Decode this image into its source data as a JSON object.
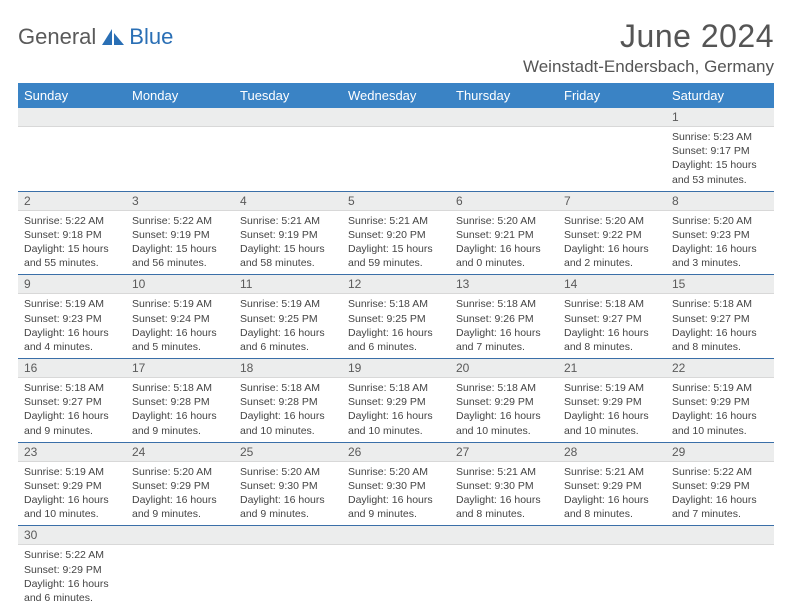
{
  "brand": {
    "part1": "General",
    "part2": "Blue"
  },
  "title": "June 2024",
  "location": "Weinstadt-Endersbach, Germany",
  "colors": {
    "header_bg": "#3a83c5",
    "header_text": "#ffffff",
    "row_divider": "#3a6fa8",
    "daynum_bg": "#eceded",
    "brand_gray": "#5a5a5a",
    "brand_blue": "#2a6fb5"
  },
  "weekdays": [
    "Sunday",
    "Monday",
    "Tuesday",
    "Wednesday",
    "Thursday",
    "Friday",
    "Saturday"
  ],
  "weeks": [
    [
      null,
      null,
      null,
      null,
      null,
      null,
      {
        "n": "1",
        "sr": "Sunrise: 5:23 AM",
        "ss": "Sunset: 9:17 PM",
        "dl": "Daylight: 15 hours and 53 minutes."
      }
    ],
    [
      {
        "n": "2",
        "sr": "Sunrise: 5:22 AM",
        "ss": "Sunset: 9:18 PM",
        "dl": "Daylight: 15 hours and 55 minutes."
      },
      {
        "n": "3",
        "sr": "Sunrise: 5:22 AM",
        "ss": "Sunset: 9:19 PM",
        "dl": "Daylight: 15 hours and 56 minutes."
      },
      {
        "n": "4",
        "sr": "Sunrise: 5:21 AM",
        "ss": "Sunset: 9:19 PM",
        "dl": "Daylight: 15 hours and 58 minutes."
      },
      {
        "n": "5",
        "sr": "Sunrise: 5:21 AM",
        "ss": "Sunset: 9:20 PM",
        "dl": "Daylight: 15 hours and 59 minutes."
      },
      {
        "n": "6",
        "sr": "Sunrise: 5:20 AM",
        "ss": "Sunset: 9:21 PM",
        "dl": "Daylight: 16 hours and 0 minutes."
      },
      {
        "n": "7",
        "sr": "Sunrise: 5:20 AM",
        "ss": "Sunset: 9:22 PM",
        "dl": "Daylight: 16 hours and 2 minutes."
      },
      {
        "n": "8",
        "sr": "Sunrise: 5:20 AM",
        "ss": "Sunset: 9:23 PM",
        "dl": "Daylight: 16 hours and 3 minutes."
      }
    ],
    [
      {
        "n": "9",
        "sr": "Sunrise: 5:19 AM",
        "ss": "Sunset: 9:23 PM",
        "dl": "Daylight: 16 hours and 4 minutes."
      },
      {
        "n": "10",
        "sr": "Sunrise: 5:19 AM",
        "ss": "Sunset: 9:24 PM",
        "dl": "Daylight: 16 hours and 5 minutes."
      },
      {
        "n": "11",
        "sr": "Sunrise: 5:19 AM",
        "ss": "Sunset: 9:25 PM",
        "dl": "Daylight: 16 hours and 6 minutes."
      },
      {
        "n": "12",
        "sr": "Sunrise: 5:18 AM",
        "ss": "Sunset: 9:25 PM",
        "dl": "Daylight: 16 hours and 6 minutes."
      },
      {
        "n": "13",
        "sr": "Sunrise: 5:18 AM",
        "ss": "Sunset: 9:26 PM",
        "dl": "Daylight: 16 hours and 7 minutes."
      },
      {
        "n": "14",
        "sr": "Sunrise: 5:18 AM",
        "ss": "Sunset: 9:27 PM",
        "dl": "Daylight: 16 hours and 8 minutes."
      },
      {
        "n": "15",
        "sr": "Sunrise: 5:18 AM",
        "ss": "Sunset: 9:27 PM",
        "dl": "Daylight: 16 hours and 8 minutes."
      }
    ],
    [
      {
        "n": "16",
        "sr": "Sunrise: 5:18 AM",
        "ss": "Sunset: 9:27 PM",
        "dl": "Daylight: 16 hours and 9 minutes."
      },
      {
        "n": "17",
        "sr": "Sunrise: 5:18 AM",
        "ss": "Sunset: 9:28 PM",
        "dl": "Daylight: 16 hours and 9 minutes."
      },
      {
        "n": "18",
        "sr": "Sunrise: 5:18 AM",
        "ss": "Sunset: 9:28 PM",
        "dl": "Daylight: 16 hours and 10 minutes."
      },
      {
        "n": "19",
        "sr": "Sunrise: 5:18 AM",
        "ss": "Sunset: 9:29 PM",
        "dl": "Daylight: 16 hours and 10 minutes."
      },
      {
        "n": "20",
        "sr": "Sunrise: 5:18 AM",
        "ss": "Sunset: 9:29 PM",
        "dl": "Daylight: 16 hours and 10 minutes."
      },
      {
        "n": "21",
        "sr": "Sunrise: 5:19 AM",
        "ss": "Sunset: 9:29 PM",
        "dl": "Daylight: 16 hours and 10 minutes."
      },
      {
        "n": "22",
        "sr": "Sunrise: 5:19 AM",
        "ss": "Sunset: 9:29 PM",
        "dl": "Daylight: 16 hours and 10 minutes."
      }
    ],
    [
      {
        "n": "23",
        "sr": "Sunrise: 5:19 AM",
        "ss": "Sunset: 9:29 PM",
        "dl": "Daylight: 16 hours and 10 minutes."
      },
      {
        "n": "24",
        "sr": "Sunrise: 5:20 AM",
        "ss": "Sunset: 9:29 PM",
        "dl": "Daylight: 16 hours and 9 minutes."
      },
      {
        "n": "25",
        "sr": "Sunrise: 5:20 AM",
        "ss": "Sunset: 9:30 PM",
        "dl": "Daylight: 16 hours and 9 minutes."
      },
      {
        "n": "26",
        "sr": "Sunrise: 5:20 AM",
        "ss": "Sunset: 9:30 PM",
        "dl": "Daylight: 16 hours and 9 minutes."
      },
      {
        "n": "27",
        "sr": "Sunrise: 5:21 AM",
        "ss": "Sunset: 9:30 PM",
        "dl": "Daylight: 16 hours and 8 minutes."
      },
      {
        "n": "28",
        "sr": "Sunrise: 5:21 AM",
        "ss": "Sunset: 9:29 PM",
        "dl": "Daylight: 16 hours and 8 minutes."
      },
      {
        "n": "29",
        "sr": "Sunrise: 5:22 AM",
        "ss": "Sunset: 9:29 PM",
        "dl": "Daylight: 16 hours and 7 minutes."
      }
    ],
    [
      {
        "n": "30",
        "sr": "Sunrise: 5:22 AM",
        "ss": "Sunset: 9:29 PM",
        "dl": "Daylight: 16 hours and 6 minutes."
      },
      null,
      null,
      null,
      null,
      null,
      null
    ]
  ]
}
